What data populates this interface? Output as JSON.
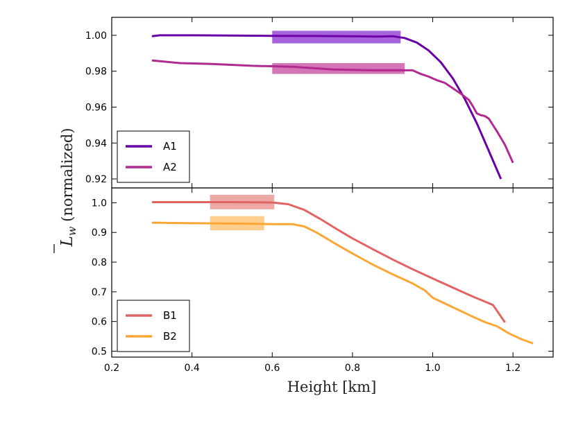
{
  "chart_data": [
    {
      "type": "line",
      "panel": "top",
      "xlim": [
        0.2,
        1.3
      ],
      "ylim": [
        0.915,
        1.01
      ],
      "xlabel": "Height [km]",
      "ylabel": "L̄_w (normalized)",
      "ylabel_parts": {
        "main": "L",
        "subscript": "w",
        "suffix": "(normalized)"
      },
      "yticks": [
        0.92,
        0.94,
        0.96,
        0.98,
        1.0
      ],
      "ytick_labels": [
        "0.92",
        "0.94",
        "0.96",
        "0.98",
        "1.00"
      ],
      "legend_position": "lower-left",
      "series": [
        {
          "name": "A1",
          "color": "#6a00a8",
          "band": {
            "x": [
              0.6,
              0.92
            ],
            "y": [
              0.9955,
              1.0025
            ],
            "color": "#8a2fd0"
          },
          "x": [
            0.3,
            0.32,
            0.4,
            0.5,
            0.6,
            0.7,
            0.8,
            0.86,
            0.9,
            0.93,
            0.96,
            0.99,
            1.02,
            1.05,
            1.08,
            1.11,
            1.14,
            1.17
          ],
          "y": [
            0.9995,
            1.0,
            1.0,
            0.9999,
            0.9997,
            0.9996,
            0.9995,
            0.9993,
            0.9995,
            0.9985,
            0.996,
            0.9915,
            0.985,
            0.976,
            0.9645,
            0.951,
            0.9355,
            0.92
          ]
        },
        {
          "name": "A2",
          "color": "#b12a90",
          "band": {
            "x": [
              0.6,
              0.93
            ],
            "y": [
              0.9785,
              0.9845
            ],
            "color": "#c5479f"
          },
          "x": [
            0.3,
            0.37,
            0.45,
            0.55,
            0.65,
            0.75,
            0.85,
            0.95,
            0.97,
            0.99,
            1.01,
            1.03,
            1.05,
            1.07,
            1.09,
            1.1,
            1.11,
            1.12,
            1.13,
            1.14,
            1.16,
            1.18,
            1.2
          ],
          "y": [
            0.986,
            0.9845,
            0.984,
            0.983,
            0.9825,
            0.981,
            0.9805,
            0.9805,
            0.9785,
            0.977,
            0.975,
            0.9735,
            0.9705,
            0.9675,
            0.964,
            0.9605,
            0.9565,
            0.9555,
            0.955,
            0.9535,
            0.9465,
            0.939,
            0.929
          ]
        }
      ]
    },
    {
      "type": "line",
      "panel": "bottom",
      "xlim": [
        0.2,
        1.3
      ],
      "ylim": [
        0.48,
        1.05
      ],
      "xlabel": "Height [km]",
      "xticks": [
        0.2,
        0.4,
        0.6,
        0.8,
        1.0,
        1.2
      ],
      "xtick_labels": [
        "0.2",
        "0.4",
        "0.6",
        "0.8",
        "1.0",
        "1.2"
      ],
      "yticks": [
        0.5,
        0.6,
        0.7,
        0.8,
        0.9,
        1.0
      ],
      "ytick_labels": [
        "0.5",
        "0.6",
        "0.7",
        "0.8",
        "0.9",
        "1.0"
      ],
      "legend_position": "lower-left",
      "series": [
        {
          "name": "B1",
          "color": "#e16462",
          "band": {
            "x": [
              0.445,
              0.605
            ],
            "y": [
              0.978,
              1.027
            ],
            "color": "#e88c8a"
          },
          "x": [
            0.3,
            0.4,
            0.5,
            0.6,
            0.64,
            0.68,
            0.72,
            0.76,
            0.8,
            0.85,
            0.9,
            0.95,
            1.0,
            1.05,
            1.1,
            1.15,
            1.18
          ],
          "y": [
            1.002,
            1.002,
            1.002,
            1.001,
            0.995,
            0.976,
            0.945,
            0.912,
            0.88,
            0.844,
            0.809,
            0.776,
            0.745,
            0.714,
            0.684,
            0.656,
            0.597
          ]
        },
        {
          "name": "B2",
          "color": "#fca636",
          "band": {
            "x": [
              0.445,
              0.58
            ],
            "y": [
              0.907,
              0.955
            ],
            "color": "#fdbd68"
          },
          "x": [
            0.3,
            0.4,
            0.5,
            0.6,
            0.65,
            0.68,
            0.71,
            0.74,
            0.77,
            0.8,
            0.85,
            0.9,
            0.95,
            0.98,
            1.0,
            1.05,
            1.1,
            1.13,
            1.16,
            1.19,
            1.22,
            1.25
          ],
          "y": [
            0.933,
            0.931,
            0.93,
            0.928,
            0.928,
            0.92,
            0.9,
            0.876,
            0.852,
            0.829,
            0.792,
            0.759,
            0.728,
            0.705,
            0.68,
            0.648,
            0.616,
            0.598,
            0.584,
            0.56,
            0.541,
            0.526
          ]
        }
      ]
    }
  ]
}
